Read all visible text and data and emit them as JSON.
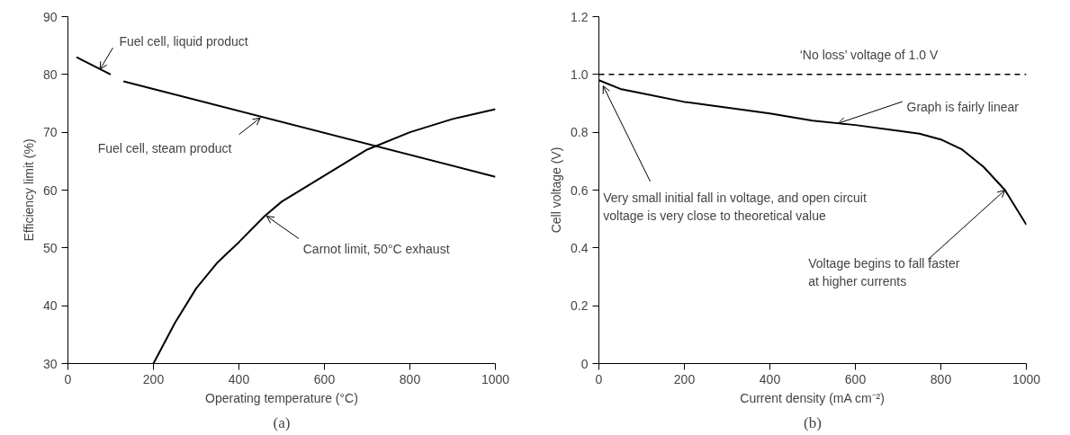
{
  "chart_data": [
    {
      "type": "line",
      "title": "(a)",
      "xlabel": "Operating temperature (°C)",
      "ylabel": "Efficiency limit (%)",
      "xlim": [
        0,
        1000
      ],
      "ylim": [
        30,
        90
      ],
      "xticks": [
        0,
        200,
        400,
        600,
        800,
        1000
      ],
      "yticks": [
        30,
        40,
        50,
        60,
        70,
        80,
        90
      ],
      "grid": false,
      "series": [
        {
          "color": "#000000",
          "x": [
            20,
            100
          ],
          "values": [
            83,
            80
          ]
        },
        {
          "color": "#000000",
          "x": [
            130,
            1000
          ],
          "values": [
            78.8,
            62.3
          ]
        },
        {
          "color": "#000000",
          "x": [
            200,
            250,
            300,
            350,
            400,
            460,
            500,
            600,
            700,
            800,
            900,
            1000
          ],
          "values": [
            30,
            37,
            43,
            47.5,
            51,
            55.5,
            58,
            62.5,
            67,
            70,
            72.3,
            74
          ]
        }
      ],
      "annotations": [
        {
          "text": "Fuel cell, liquid product",
          "x": 75,
          "y": 80.9
        },
        {
          "text": "Fuel cell, steam product",
          "x": 450,
          "y": 72.5
        },
        {
          "text": "Carnot limit, 50°C exhaust",
          "x": 465,
          "y": 55.5
        }
      ]
    },
    {
      "type": "line",
      "title": "(b)",
      "xlabel": "Current density (mA cm⁻²)",
      "ylabel": "Cell voltage (V)",
      "xlim": [
        0,
        1000
      ],
      "ylim": [
        0,
        1.2
      ],
      "xticks": [
        0,
        200,
        400,
        600,
        800,
        1000
      ],
      "yticks": [
        0,
        0.2,
        0.4,
        0.6,
        0.8,
        {
          "value": 1,
          "label": "1.0"
        },
        1.2
      ],
      "grid": false,
      "series": [
        {
          "color": "#000000",
          "x": [
            0,
            50,
            100,
            200,
            300,
            400,
            500,
            600,
            700,
            750,
            800,
            850,
            900,
            950,
            1000
          ],
          "values": [
            0.98,
            0.95,
            0.935,
            0.905,
            0.885,
            0.865,
            0.84,
            0.825,
            0.805,
            0.795,
            0.775,
            0.74,
            0.68,
            0.6,
            0.48
          ]
        }
      ],
      "ref_lines": [
        {
          "axis": "y",
          "value": 1.0,
          "label": "‘No loss’ voltage of 1.0 V",
          "color": "#000000",
          "line_style": "dashed"
        }
      ],
      "annotations": [
        {
          "text": "Graph is fairly linear",
          "x": 560,
          "y": 0.831
        },
        {
          "text": "Very small initial fall in voltage, and open circuit\nvoltage is very close to theoretical value",
          "x": 10,
          "y": 0.96
        },
        {
          "text": "Voltage begins to fall faster\nat higher currents",
          "x": 950,
          "y": 0.6
        }
      ]
    }
  ]
}
